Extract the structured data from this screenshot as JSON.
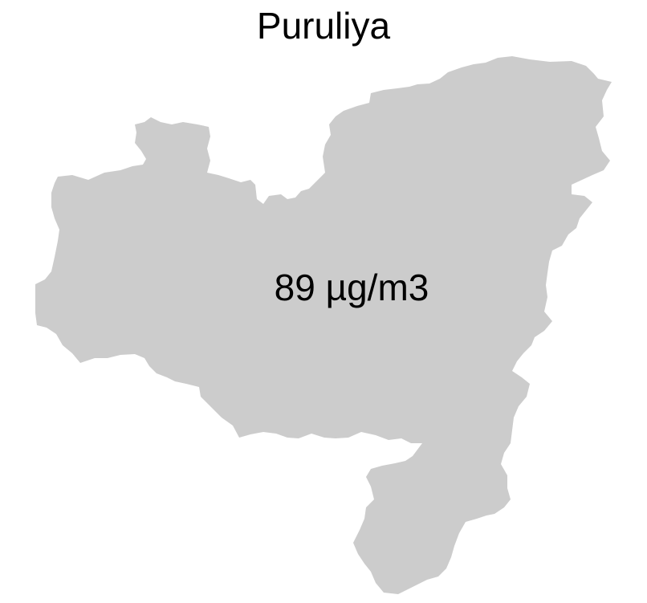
{
  "title": "Puruliya",
  "region": {
    "name": "Puruliya",
    "value_label": "89 µg/m3",
    "fill_color": "#cccccc"
  }
}
